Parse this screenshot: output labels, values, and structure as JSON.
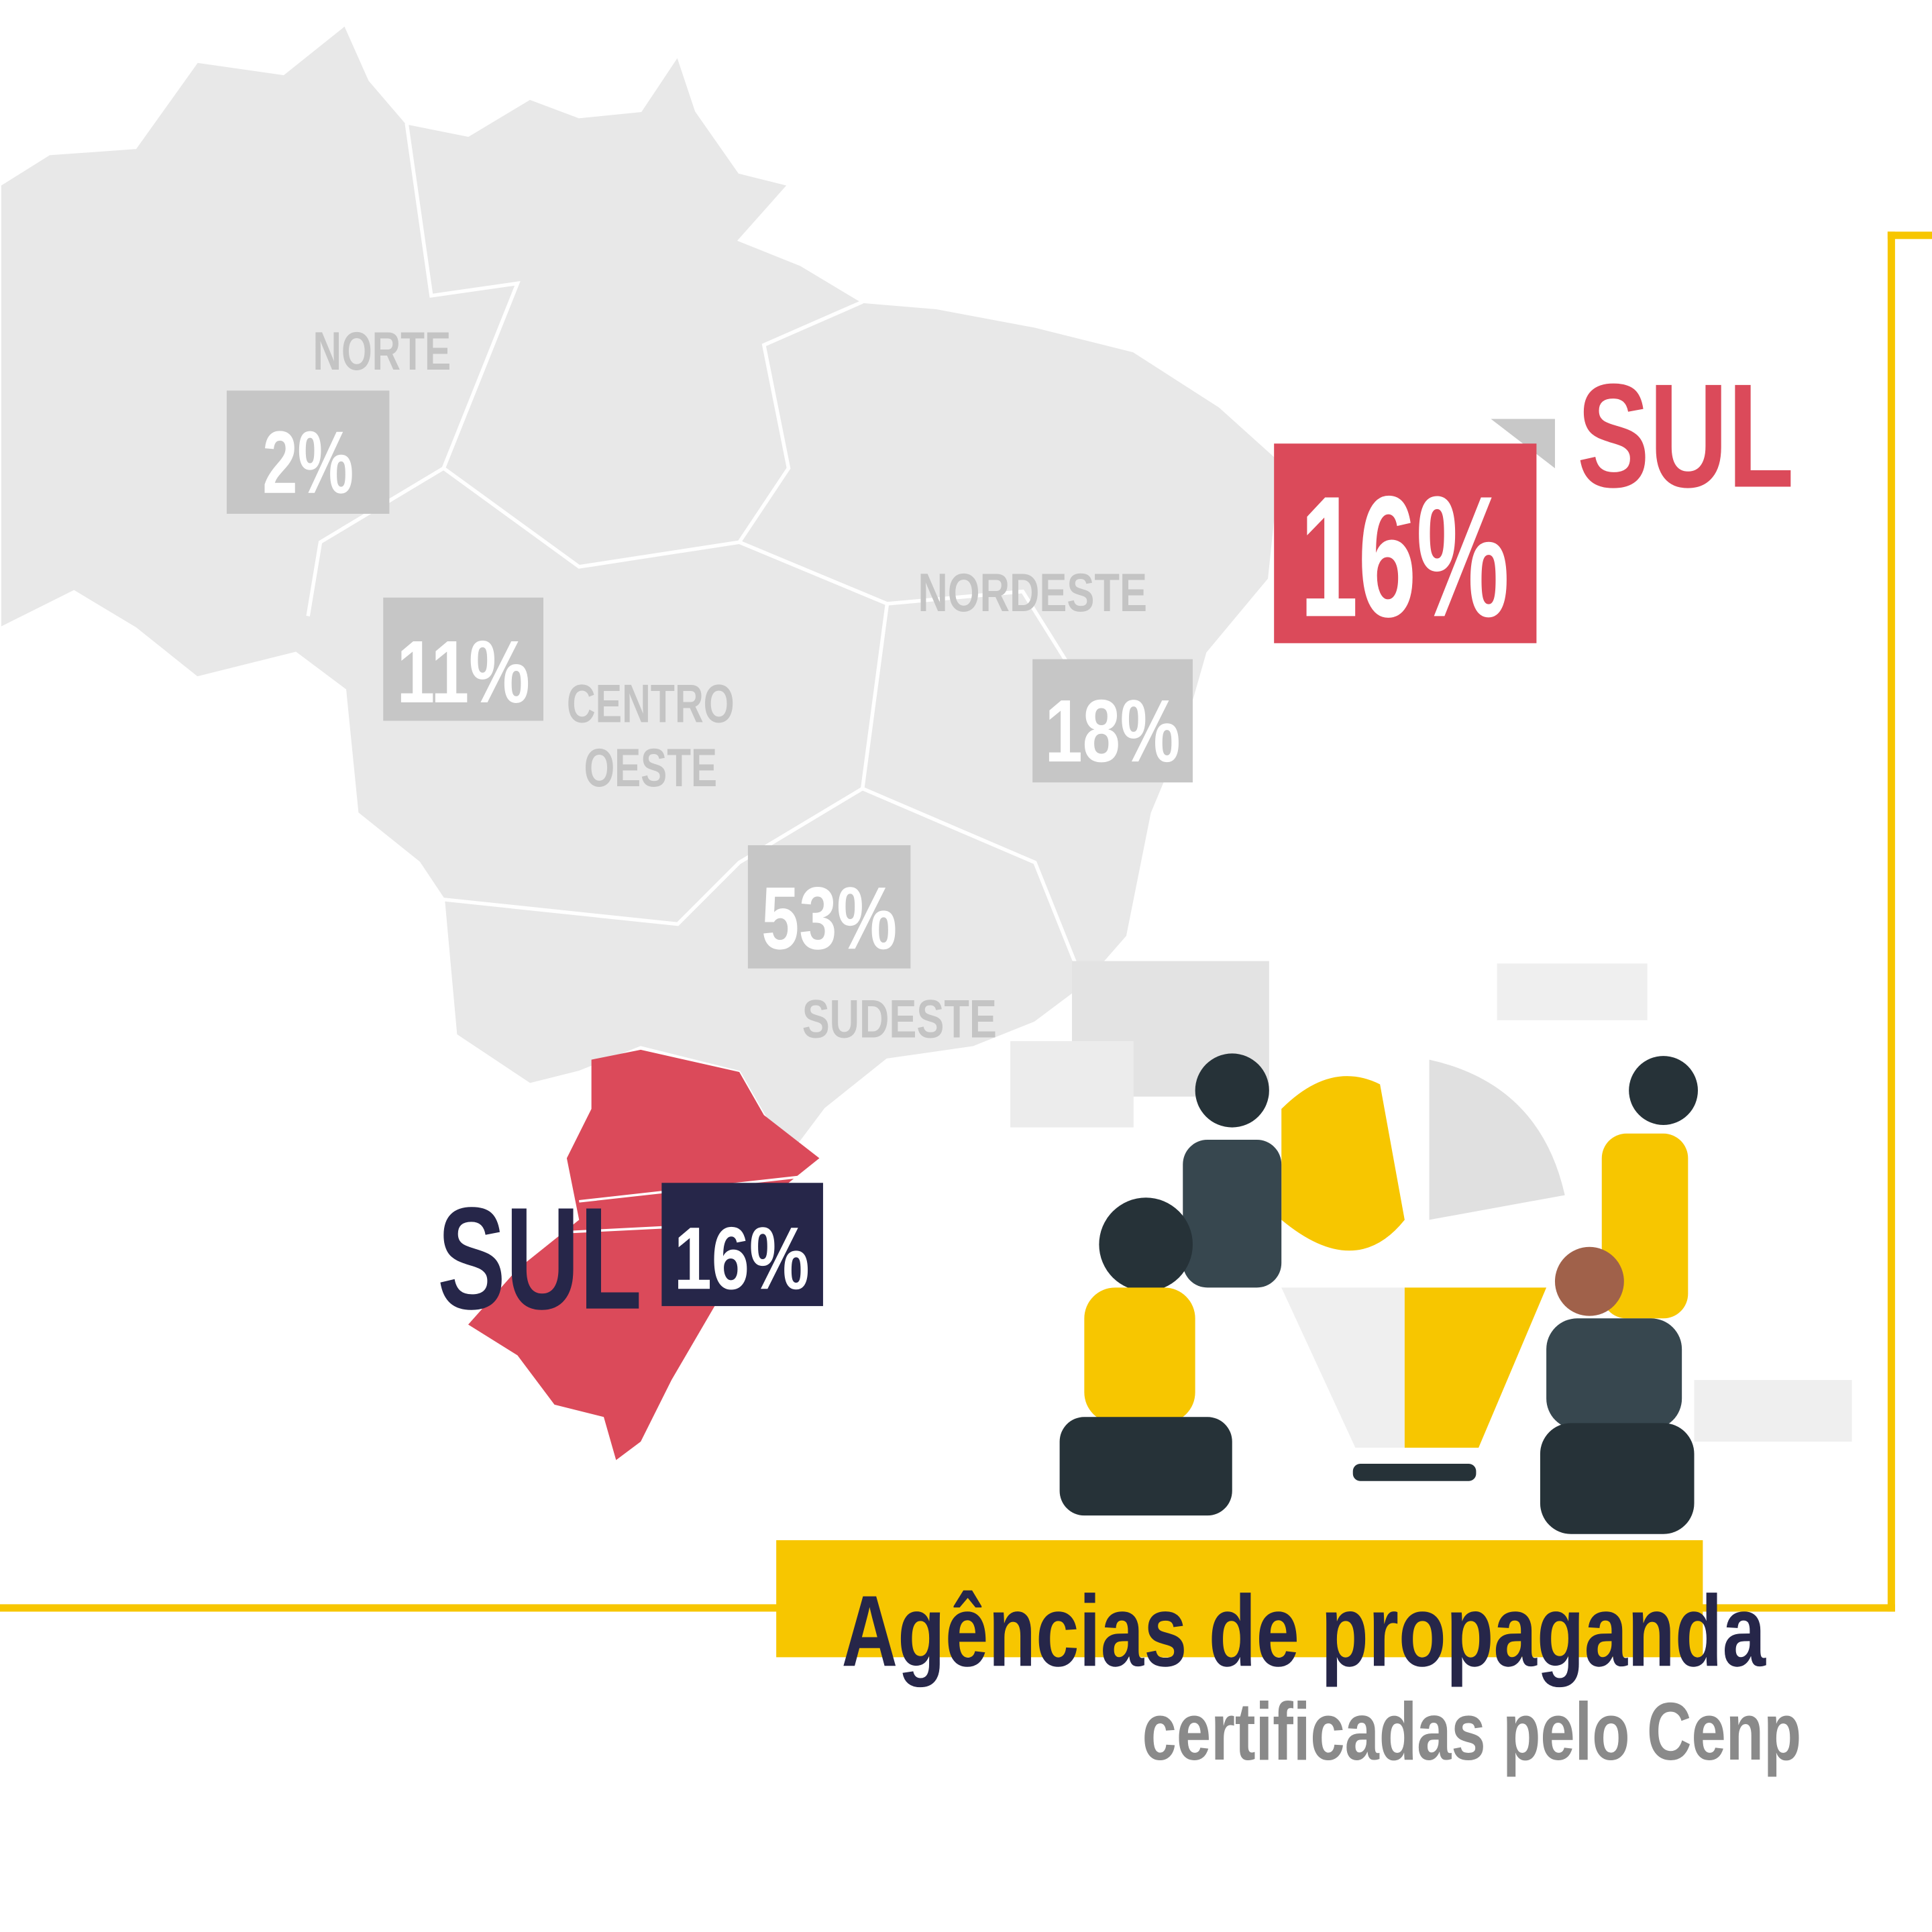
{
  "highlight": {
    "value_label": "16%",
    "name": "SUL"
  },
  "regions": [
    {
      "name": "NORTE",
      "value_label": "2%"
    },
    {
      "name": [
        "CENTRO",
        "OESTE"
      ],
      "value_label": "11%"
    },
    {
      "name": "NORDESTE",
      "value_label": "18%"
    },
    {
      "name": "SUDESTE",
      "value_label": "53%"
    },
    {
      "name": "SUL",
      "value_label": "16%"
    }
  ],
  "footer": {
    "title": "Agências de propaganda",
    "subtitle": "certificadas pelo Cenp"
  }
}
